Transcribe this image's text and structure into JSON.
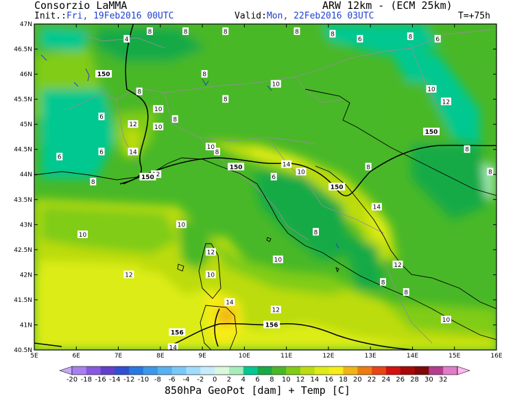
{
  "header": {
    "org": "Consorzio LaMMA",
    "model": "ARW 12km - (ECM 25km)",
    "init_label": "Init.:",
    "init_value": "Fri, 19Feb2016 00UTC",
    "valid_label": "Valid:",
    "valid_value": "Mon, 22Feb2016 03UTC",
    "forecast_step": "T=+75h"
  },
  "map": {
    "lat_labels": [
      "47N",
      "46.5N",
      "46N",
      "45.5N",
      "45N",
      "44.5N",
      "44N",
      "43.5N",
      "43N",
      "42.5N",
      "42N",
      "41.5N",
      "41N",
      "40.5N"
    ],
    "lon_labels": [
      "5E",
      "6E",
      "7E",
      "8E",
      "9E",
      "10E",
      "11E",
      "12E",
      "13E",
      "14E",
      "15E",
      "16E"
    ],
    "geopotential_labels": [
      {
        "text": "150",
        "lon": 6.65,
        "lat": 46.0
      },
      {
        "text": "150",
        "lon": 7.7,
        "lat": 43.95
      },
      {
        "text": "150",
        "lon": 9.8,
        "lat": 44.15
      },
      {
        "text": "150",
        "lon": 12.2,
        "lat": 43.75
      },
      {
        "text": "150",
        "lon": 14.45,
        "lat": 44.85
      },
      {
        "text": "156",
        "lon": 8.4,
        "lat": 40.85
      },
      {
        "text": "156",
        "lon": 10.65,
        "lat": 41.0
      }
    ],
    "temperature_labels": [
      {
        "text": "8",
        "lon": 7.75,
        "lat": 46.85
      },
      {
        "text": "8",
        "lon": 8.6,
        "lat": 46.85
      },
      {
        "text": "8",
        "lon": 9.55,
        "lat": 46.85
      },
      {
        "text": "8",
        "lon": 11.25,
        "lat": 46.85
      },
      {
        "text": "8",
        "lon": 12.1,
        "lat": 46.8
      },
      {
        "text": "6",
        "lon": 12.75,
        "lat": 46.7
      },
      {
        "text": "8",
        "lon": 13.95,
        "lat": 46.75
      },
      {
        "text": "6",
        "lon": 14.6,
        "lat": 46.7
      },
      {
        "text": "4",
        "lon": 7.2,
        "lat": 46.7
      },
      {
        "text": "8",
        "lon": 7.5,
        "lat": 45.65
      },
      {
        "text": "10",
        "lon": 7.95,
        "lat": 45.3
      },
      {
        "text": "8",
        "lon": 9.05,
        "lat": 46.0
      },
      {
        "text": "8",
        "lon": 9.55,
        "lat": 45.5
      },
      {
        "text": "10",
        "lon": 10.75,
        "lat": 45.8
      },
      {
        "text": "10",
        "lon": 14.45,
        "lat": 45.7
      },
      {
        "text": "12",
        "lon": 14.8,
        "lat": 45.45
      },
      {
        "text": "6",
        "lon": 6.6,
        "lat": 45.15
      },
      {
        "text": "12",
        "lon": 7.35,
        "lat": 45.0
      },
      {
        "text": "10",
        "lon": 7.95,
        "lat": 44.95
      },
      {
        "text": "8",
        "lon": 8.35,
        "lat": 45.1
      },
      {
        "text": "10",
        "lon": 9.2,
        "lat": 44.55
      },
      {
        "text": "8",
        "lon": 9.35,
        "lat": 44.45
      },
      {
        "text": "6",
        "lon": 6.6,
        "lat": 44.45
      },
      {
        "text": "6",
        "lon": 5.6,
        "lat": 44.35
      },
      {
        "text": "14",
        "lon": 7.35,
        "lat": 44.45
      },
      {
        "text": "12",
        "lon": 7.9,
        "lat": 44.0
      },
      {
        "text": "8",
        "lon": 6.4,
        "lat": 43.85
      },
      {
        "text": "14",
        "lon": 11.0,
        "lat": 44.2
      },
      {
        "text": "10",
        "lon": 11.35,
        "lat": 44.05
      },
      {
        "text": "6",
        "lon": 10.7,
        "lat": 43.95
      },
      {
        "text": "8",
        "lon": 12.95,
        "lat": 44.15
      },
      {
        "text": "8",
        "lon": 15.3,
        "lat": 44.5
      },
      {
        "text": "8",
        "lon": 15.85,
        "lat": 44.05
      },
      {
        "text": "14",
        "lon": 13.15,
        "lat": 43.35
      },
      {
        "text": "10",
        "lon": 8.5,
        "lat": 43.0
      },
      {
        "text": "10",
        "lon": 6.15,
        "lat": 42.8
      },
      {
        "text": "8",
        "lon": 11.7,
        "lat": 42.85
      },
      {
        "text": "12",
        "lon": 9.2,
        "lat": 42.45
      },
      {
        "text": "10",
        "lon": 10.8,
        "lat": 42.3
      },
      {
        "text": "12",
        "lon": 13.65,
        "lat": 42.2
      },
      {
        "text": "10",
        "lon": 9.2,
        "lat": 42.0
      },
      {
        "text": "12",
        "lon": 7.25,
        "lat": 42.0
      },
      {
        "text": "8",
        "lon": 13.3,
        "lat": 41.85
      },
      {
        "text": "8",
        "lon": 13.85,
        "lat": 41.65
      },
      {
        "text": "14",
        "lon": 9.65,
        "lat": 41.45
      },
      {
        "text": "12",
        "lon": 10.75,
        "lat": 41.3
      },
      {
        "text": "10",
        "lon": 14.8,
        "lat": 41.1
      },
      {
        "text": "14",
        "lon": 8.3,
        "lat": 40.55
      }
    ]
  },
  "colorbar": {
    "ticks": [
      "-20",
      "-18",
      "-16",
      "-14",
      "-12",
      "-10",
      "-8",
      "-6",
      "-4",
      "-2",
      "0",
      "2",
      "4",
      "6",
      "8",
      "10",
      "12",
      "14",
      "16",
      "18",
      "20",
      "22",
      "24",
      "26",
      "28",
      "30",
      "32"
    ],
    "colors": [
      "#c8a8f4",
      "#a880ee",
      "#8858e0",
      "#6040c8",
      "#3050d0",
      "#2878e0",
      "#3c98e8",
      "#58b0f0",
      "#78c8f8",
      "#a0dcfc",
      "#c8ecfc",
      "#dcf8dc",
      "#a8ecbc",
      "#00c890",
      "#18aa46",
      "#48b828",
      "#80cc14",
      "#bcdc10",
      "#dcec14",
      "#f8ec18",
      "#f0b414",
      "#ec7c10",
      "#e84414",
      "#d41010",
      "#a80808",
      "#800808",
      "#b43c8c",
      "#e07cc8",
      "#fcb8f0"
    ],
    "caption": "850hPa GeoPot [dam] + Temp [C]"
  }
}
